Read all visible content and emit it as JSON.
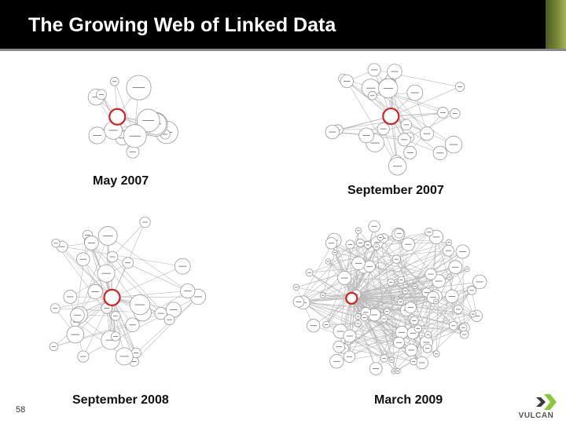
{
  "slide": {
    "title": "The Growing Web of Linked Data",
    "number": "58"
  },
  "panels": [
    {
      "caption": "May 2007",
      "seed": 11,
      "nodes": 14
    },
    {
      "caption": "September 2007",
      "seed": 27,
      "nodes": 28
    },
    {
      "caption": "September 2008",
      "seed": 53,
      "nodes": 36
    },
    {
      "caption": "March 2009",
      "seed": 97,
      "nodes": 95
    }
  ],
  "logo": {
    "text": "VULCAN"
  },
  "colors": {
    "title_bg": "#000000",
    "title_text": "#ffffff",
    "hub_ring": "#d42020",
    "node_stroke": "#9a9a9a",
    "edge": "#b8b8b8",
    "accent": "#8cc63e"
  }
}
